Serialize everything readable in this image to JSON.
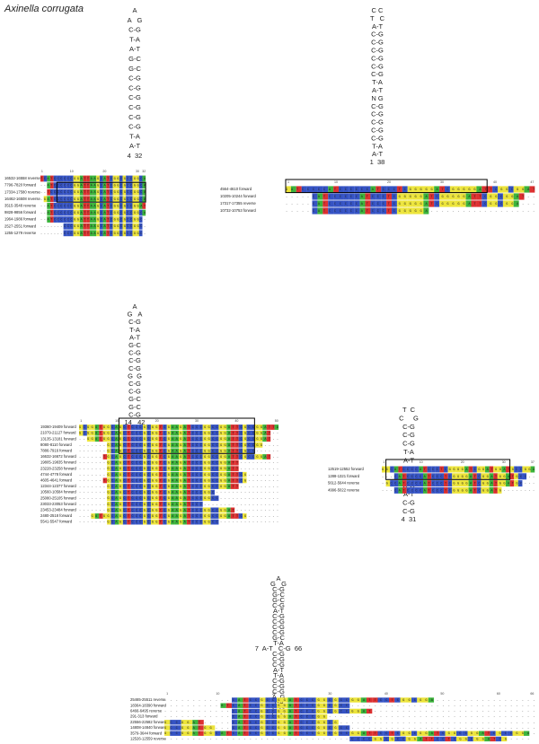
{
  "title": "Axinella corrugata",
  "panels": [
    {
      "hairpin": [
        "A",
        "A   G",
        "C-G",
        "T-A",
        "A-T",
        "G-C",
        "G-C",
        "C-G",
        "C-G",
        "C-G",
        "C-G",
        "C-G",
        "C-G",
        "T-A",
        "A-T",
        "4  32"
      ],
      "alignment": {
        "ruler": [
          1,
          10,
          20,
          30,
          32
        ],
        "rows": [
          {
            "label": "16532-16558 reverse",
            "sequence": "TCATCCCCCCGGATTAAGCATCGGCGCCGGCA"
          },
          {
            "label": "7796-7820 forward",
            "sequence": "--ATCCCCCCGGATTAAGCATCGGCGCCGGCA"
          },
          {
            "label": "17334-17580 reverse",
            "sequence": "--TCCCCCCCGGATTAAGCATCGGCGCCGGCA"
          },
          {
            "label": "16462-16508 reverse",
            "sequence": "-GATCCCCCCGGATTAAGCATCGGCGCCGGCA"
          },
          {
            "label": "3515-3548 reverse",
            "sequence": "--ATCCCCCCGGATTAAGCATCGGCGCCGGAT"
          },
          {
            "label": "9828-9856 forward",
            "sequence": "--ATCCCCCCGGATTAAGCATCGGCGCCGGCA"
          },
          {
            "label": "1964-1986 forward",
            "sequence": "--ATCCCCCCGGATTAAGCATCGGCGCCGGC-"
          },
          {
            "label": "2527-2551 forward",
            "sequence": "-------CCCGGATTAAGCATCGGCGCCGGC-"
          },
          {
            "label": "1255-1279 reverse",
            "sequence": "-------CCCGGATTAAGCATCGGCGCCGGC-"
          }
        ]
      }
    },
    {
      "hairpin": [
        "C C",
        "T   C",
        "A-T",
        "C-G",
        "C-G",
        "C-G",
        "C-G",
        "C-G",
        "C-G",
        "T-A",
        "A-T",
        "N G",
        "C-G",
        "C-G",
        "C-G",
        "C-G",
        "C-G",
        "T-A",
        "A-T",
        "1  38"
      ],
      "alignment": {
        "ruler": [
          1,
          10,
          20,
          30,
          40,
          47
        ],
        "rows": [
          {
            "label": "4564-4610 forward",
            "sequence": "GATCCCCCATCCCCCCATCCCTCGGGGGATCGGGGGATTCGGCGGAT"
          },
          {
            "label": "10205-10244 forward",
            "sequence": "-----CATCCCCCCATCCCTCGGGGGATCGGGGGATTCGGCGGAT--"
          },
          {
            "label": "17317-17355 reverse",
            "sequence": "-----CATCCCCCCATCCCTCGGGGGATCGGGGGATTCGGCGGA---"
          },
          {
            "label": "10732-10753 forward",
            "sequence": "-----CATCCCCCCATCCCTCGGGGGA--------------------"
          }
        ]
      }
    },
    {
      "hairpin": [
        "A",
        "G   A",
        "C-G",
        "T-A",
        "A-T",
        "G-C",
        "C-G",
        "C-G",
        "C-G",
        "G  G",
        "C-G",
        "C-G",
        "G-C",
        "G-C",
        "C-G",
        "14   42"
      ],
      "alignment": {
        "ruler": [
          1,
          10,
          20,
          30,
          40,
          50
        ],
        "rows": [
          {
            "label": "19360-19409 forward",
            "sequence": "GCGGATGGCAGCTCCCGCGGTCGAAGATCCCGGCCGGATTCGCCGGATTA"
          },
          {
            "label": "21079-21127 forward",
            "sequence": "GCGGATGGCAGCTCCCGCGGTCGAAGATCCCGGCCGGATTCGCCGGAT--"
          },
          {
            "label": "13135-13181 forward",
            "sequence": "--GGATGGCAGCTCCCGCGGTCGAAGATCCCGGCCGGATTCGCCGGAT--"
          },
          {
            "label": "8080-8110 forward",
            "sequence": "-------GCAGCTCCCGCGGTCGAAGATCCCGGCCGGATTCGCCGG----"
          },
          {
            "label": "7886-7916 forward",
            "sequence": "-------GCAGCTCCCGCGGTCGAAGATCCCGGCCGGATTCGCC------"
          },
          {
            "label": "16632-16672 forward",
            "sequence": "------TGCAGCTCCCGCGGTCGAAGATCCCGGCCGGATTCGCCGGAT--"
          },
          {
            "label": "19805-19835 forward",
            "sequence": "-------GCAGCTCCCGCGGTCGAAGATCCCGGCCGGATT----------"
          },
          {
            "label": "23228-23258 forward",
            "sequence": "-------GCAGCTCCCGCGGTCGAAGATCCCGGCCGGATT----------"
          },
          {
            "label": "4744-4778 forward",
            "sequence": "-------GCAGCTCCCGCGGTCGAAGATCCCGGCCGGATTCG--------"
          },
          {
            "label": "4605-4641 forward",
            "sequence": "------TGCAGCTCCCGCGGTCGAAGATCCCGGCCGGATTCG--------"
          },
          {
            "label": "12344-12377 forward",
            "sequence": "-------GCAGCTCCCGCGGTCGAAGATCCCGGCCGGATT----------"
          },
          {
            "label": "10560-10584 forward",
            "sequence": "-------GCAGCTCCCGCGGTCGAAGATCCCGGC----------------"
          },
          {
            "label": "25080-25105 forward",
            "sequence": "-------GCAGCTCCCGCGGTCGAAGATCCCGGCC---------------"
          },
          {
            "label": "23033-23053 forward",
            "sequence": "-------GCAGCTCCCGCGGTCGAAGATCCC-------------------"
          },
          {
            "label": "23453-23484 forward",
            "sequence": "-------GCAGCTCCCGCGGTCGAAGATCCCGGCCGGAT-----------"
          },
          {
            "label": "2480-2518 forward",
            "sequence": "---GATGGCAGCTCCCGCGGTCGAAGATCCCGGCCGGATTCG--------"
          },
          {
            "label": "5541-5547 forward",
            "sequence": "-------GCAGCTCCCGCGGTCGAAGATCCCGGCC---------------"
          }
        ]
      }
    },
    {
      "hairpin": [
        "T  C",
        "C     G",
        "C-G",
        "C-G",
        "C-G",
        "T-A",
        "A-T",
        "C-G",
        "C-G",
        "C-G",
        "A-T",
        "C-G",
        "C-G",
        "4  31"
      ],
      "alignment": {
        "ruler": [
          1,
          10,
          20,
          30,
          37
        ],
        "rows": [
          {
            "label": "12519-12552 forward",
            "sequence": "GGCATCCCCATCCCTCGGGGATCGGATGGATGCCGGA"
          },
          {
            "label": "1288-1321 forward",
            "sequence": "---CATCCCCATCCCTCGGGGATCGGATGGATGCC--"
          },
          {
            "label": "5612-5644 reverse",
            "sequence": "-GCCATCCCCATCCCTCGGGGATCGGATGGATGC---"
          },
          {
            "label": "4996-5022 reverse",
            "sequence": "---CATCCCCATCCCTCGGGGATCGGATG--------"
          }
        ]
      }
    },
    {
      "hairpin": [
        "A",
        "G   G",
        "C-G",
        "G-C",
        "G-C",
        "C-G",
        "A-T",
        "C-G",
        "C-G",
        "C-G",
        "C-G",
        "G-C",
        "T-A",
        "7  A-T   C-G  66",
        "C-G",
        "C-G",
        "C-G",
        "A-T",
        "T-A",
        "C-G",
        "C-G",
        "C-G",
        "A  G",
        "T-A",
        "C-G",
        "C  C"
      ],
      "alignment": {
        "ruler": [
          1,
          10,
          20,
          30,
          40,
          50,
          60,
          66
        ],
        "rows": [
          {
            "label": "25465-25511 reverse",
            "sequence": "------------CATCCGCCGGATCCCGGCGCCGGATTCCTCGGCGGA------------------"
          },
          {
            "label": "18364-18390 forward",
            "sequence": "----------ATCATCCGCCGGATCCCGGCGCC---------------------------------"
          },
          {
            "label": "6466-6495 reverse",
            "sequence": "------------CATCCGCCGGATCCCGGCGCCGGAT------------------------------"
          },
          {
            "label": "291-313 forward",
            "sequence": "------------CATCCGCCGGATCCCGG-------------------------------------"
          },
          {
            "label": "22556-22582 forward",
            "sequence": "GCCGGAT-----CATCCGCCGGATCCCGGCG-----------------------------------"
          },
          {
            "label": "14808-14840 forward",
            "sequence": "GCCGGATGG---CATCCGCCGGATCCCGGCGCC---------------------------------"
          },
          {
            "label": "3579-3644 forward",
            "sequence": "GCCGGATGGCATCATCCGCCGGATCCCGGCGCCGGATTCCTCGGCGGATCGGCCGGATCGCCGGA-"
          },
          {
            "label": "12526-12559 reverse",
            "sequence": "---------------------------------CCCCGGCGCCGGATTCCTCGGCGGATCG----"
          }
        ]
      }
    }
  ]
}
